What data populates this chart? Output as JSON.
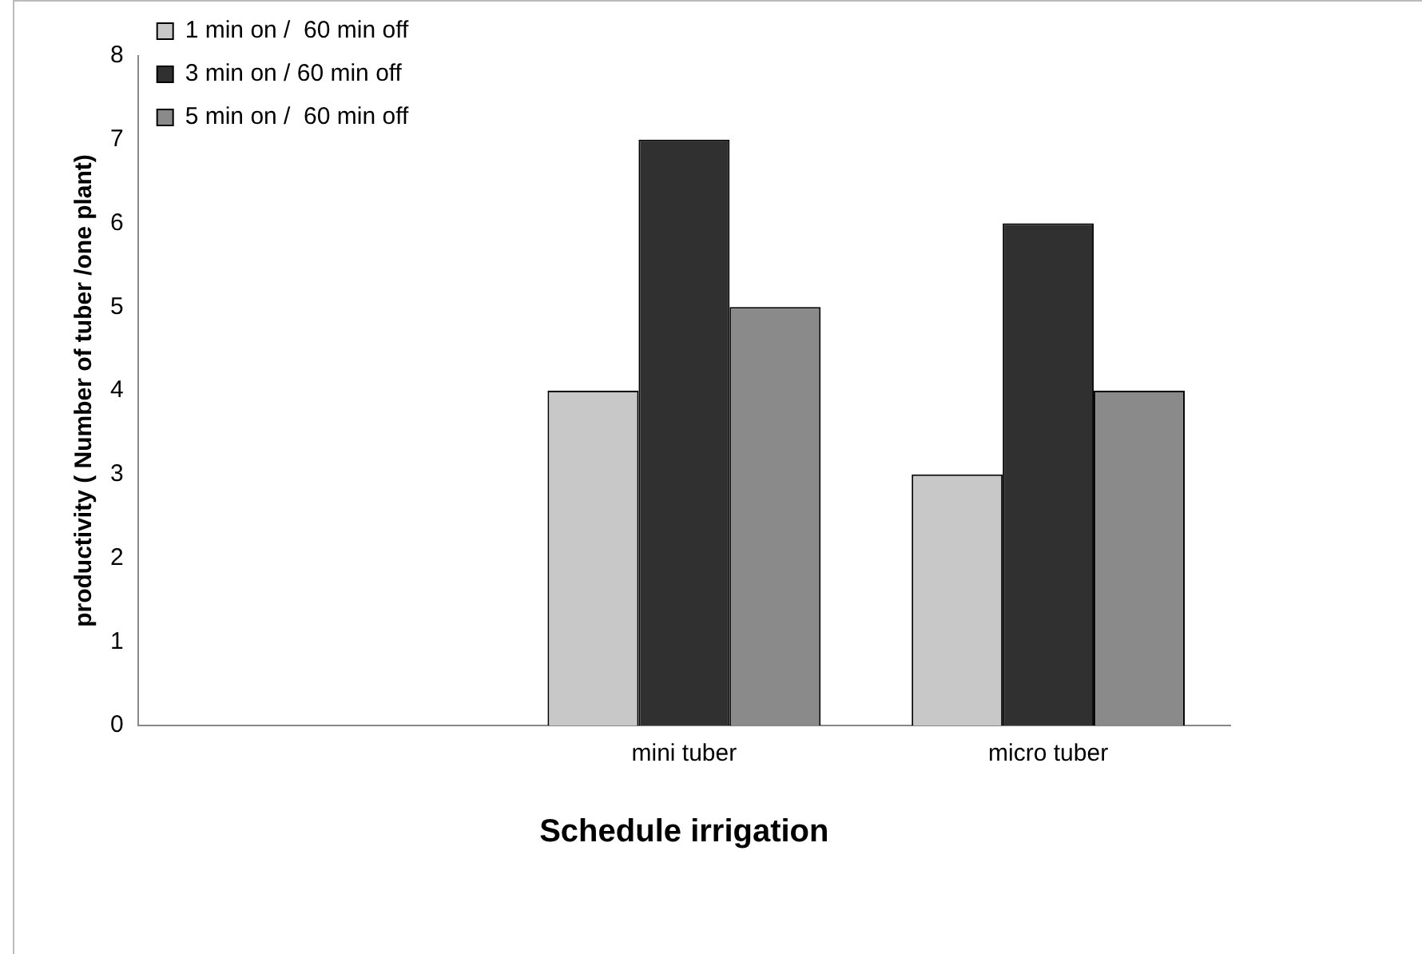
{
  "chart_data": {
    "type": "bar",
    "xlabel": "Schedule irrigation",
    "ylabel": "productivity ( Number of tuber /one plant)",
    "categories": [
      null,
      "mini tuber",
      "micro tuber"
    ],
    "series": [
      {
        "name": "1 min on /  60 min off",
        "color": "#c8c8c8",
        "values": [
          null,
          4,
          3
        ]
      },
      {
        "name": "3 min on / 60 min off",
        "color": "#303030",
        "values": [
          null,
          7,
          6
        ]
      },
      {
        "name": "5 min on /  60 min off",
        "color": "#8a8a8a",
        "values": [
          null,
          5,
          4
        ]
      }
    ],
    "ylim": [
      0,
      8
    ],
    "yticks": [
      0,
      1,
      2,
      3,
      4,
      5,
      6,
      7,
      8
    ],
    "grid": false,
    "legend": "top left"
  }
}
